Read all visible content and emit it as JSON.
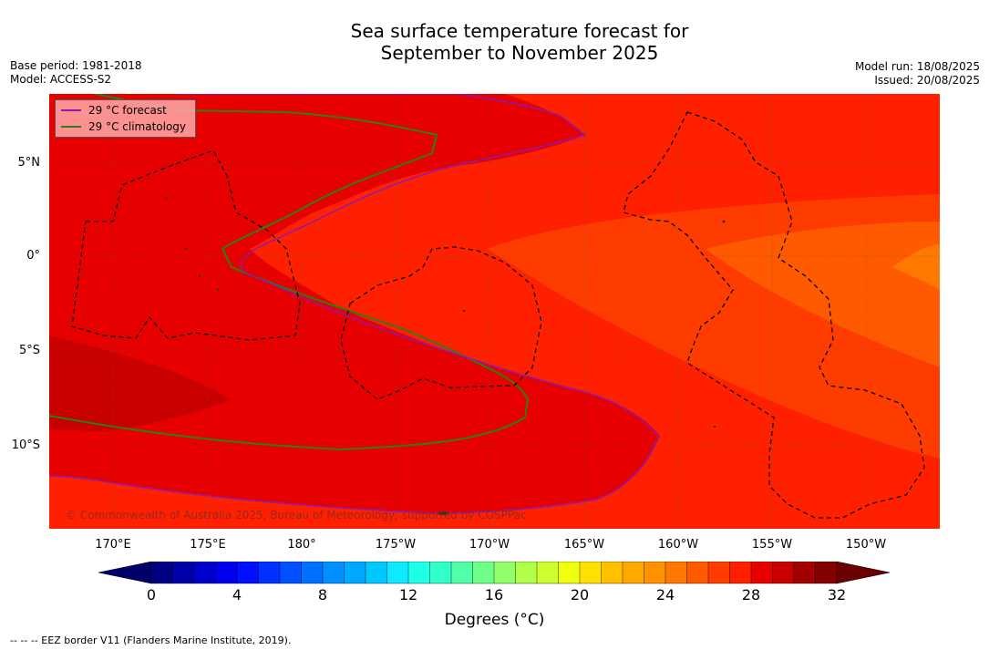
{
  "title_line1": "Sea surface temperature forecast for",
  "title_line2": "September to November 2025",
  "base_period": "Base period: 1981-2018",
  "model": "Model: ACCESS-S2",
  "model_run": "Model run: 18/08/2025",
  "issued": "Issued: 20/08/2025",
  "lat_labels": [
    "5°N",
    "0°",
    "5°S",
    "10°S"
  ],
  "lon_labels": [
    "170°E",
    "175°E",
    "180°",
    "175°W",
    "170°W",
    "165°W",
    "160°W",
    "155°W",
    "150°W"
  ],
  "legend": {
    "forecast_label": "29 °C  forecast",
    "climatology_label": "29 °C  climatology",
    "forecast_color": "#8b1ab0",
    "climatology_color": "#2e7d14"
  },
  "copyright": "© Commonwealth of Australia 2025, Bureau of Meteorology; supported by COSPPac",
  "colorbar": {
    "ticks": [
      "0",
      "4",
      "8",
      "12",
      "16",
      "20",
      "24",
      "28",
      "32"
    ],
    "label": "Degrees (°C)",
    "colors": [
      "#000082",
      "#0000a8",
      "#0000cc",
      "#0000ee",
      "#0010ff",
      "#0030ff",
      "#0050ff",
      "#0070ff",
      "#0090ff",
      "#00a8ff",
      "#00c8ff",
      "#10e8ff",
      "#20ffe8",
      "#30ffc8",
      "#50ffa8",
      "#70ff88",
      "#90ff68",
      "#b0ff48",
      "#d0ff30",
      "#f0ff10",
      "#ffe000",
      "#ffc000",
      "#ffa800",
      "#ff9000",
      "#ff7800",
      "#ff5a00",
      "#ff3c00",
      "#ff2000",
      "#e80000",
      "#c80000",
      "#a00000",
      "#820000"
    ],
    "under_color": "#00006a",
    "over_color": "#6a0000"
  },
  "footer": "--  --  -- EEZ border V11 (Flanders Marine Institute, 2019).",
  "map_colors": {
    "c30": "#e60000",
    "c31": "#c80000",
    "c28": "#ff2000",
    "c27": "#ff3c00",
    "c26": "#ff5a00",
    "c25": "#ff7800"
  }
}
